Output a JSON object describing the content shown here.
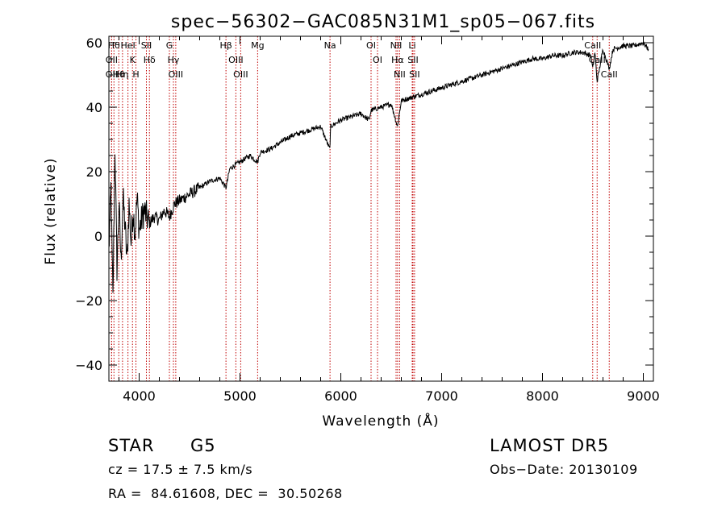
{
  "chart_data": {
    "type": "line",
    "title": "spec−56302−GAC085N31M1_sp05−067.fits",
    "xlabel": "Wavelength (Å)",
    "ylabel": "Flux (relative)",
    "xlim": [
      3700,
      9100
    ],
    "ylim": [
      -45,
      62
    ],
    "x_ticks": [
      4000,
      5000,
      6000,
      7000,
      8000,
      9000
    ],
    "y_ticks": [
      -40,
      -20,
      0,
      20,
      40,
      60
    ],
    "y_tick_labels": [
      "−40",
      "−20",
      "0",
      "20",
      "40",
      "60"
    ],
    "grid": false,
    "series": [
      {
        "x": [
          3700,
          3720,
          3740,
          3760,
          3780,
          3800,
          3820,
          3840,
          3860,
          3880,
          3900,
          3920,
          3940,
          3960,
          3980,
          4000,
          4050,
          4100,
          4150,
          4200,
          4250,
          4300,
          4350,
          4400,
          4500,
          4600,
          4700,
          4800,
          4861,
          4900,
          5000,
          5100,
          5175,
          5200,
          5300,
          5400,
          5500,
          5600,
          5700,
          5800,
          5890,
          5900,
          6000,
          6100,
          6200,
          6280,
          6300,
          6400,
          6500,
          6562,
          6600,
          6700,
          6800,
          6900,
          7000,
          7100,
          7200,
          7300,
          7400,
          7500,
          7600,
          7700,
          7800,
          7900,
          8000,
          8100,
          8200,
          8300,
          8400,
          8480,
          8498,
          8520,
          8542,
          8600,
          8662,
          8700,
          8800,
          8900,
          9000,
          9050
        ],
        "y": [
          -5,
          15,
          -20,
          28,
          -10,
          10,
          -8,
          12,
          3,
          -8,
          10,
          -2,
          8,
          1,
          12,
          2,
          8,
          4,
          6,
          5,
          8,
          6,
          10,
          11,
          13,
          15,
          17,
          18,
          15,
          21,
          23,
          25,
          23,
          26,
          27,
          29,
          31,
          32,
          33,
          34,
          27,
          34,
          36,
          37,
          38,
          36,
          39,
          40,
          41,
          34,
          42,
          43,
          44,
          45,
          46,
          47,
          48,
          49,
          50,
          51,
          52,
          53,
          54,
          55,
          55,
          56,
          56,
          57,
          57,
          56,
          52,
          57,
          48,
          58,
          52,
          58,
          59,
          59,
          60,
          58
        ]
      }
    ],
    "lines": [
      {
        "wl": 3750,
        "label": "Hθ"
      },
      {
        "wl": 3727,
        "label": "OII"
      },
      {
        "wl": 3727,
        "label": "OII"
      },
      {
        "wl": 3798,
        "label": "Hθ"
      },
      {
        "wl": 3835,
        "label": "Hη"
      },
      {
        "wl": 3889,
        "label": "HeI"
      },
      {
        "wl": 3934,
        "label": "K"
      },
      {
        "wl": 3968,
        "label": "H"
      },
      {
        "wl": 4072,
        "label": "SII"
      },
      {
        "wl": 4102,
        "label": "Hδ"
      },
      {
        "wl": 4300,
        "label": "G"
      },
      {
        "wl": 4340,
        "label": "Hγ"
      },
      {
        "wl": 4363,
        "label": "OIII"
      },
      {
        "wl": 4861,
        "label": "Hβ"
      },
      {
        "wl": 4959,
        "label": "OIII"
      },
      {
        "wl": 5007,
        "label": "OIII"
      },
      {
        "wl": 5175,
        "label": "Mg"
      },
      {
        "wl": 5893,
        "label": "Na"
      },
      {
        "wl": 6300,
        "label": "OI"
      },
      {
        "wl": 6364,
        "label": "OI"
      },
      {
        "wl": 6548,
        "label": "NII"
      },
      {
        "wl": 6563,
        "label": "Hα"
      },
      {
        "wl": 6583,
        "label": "NII"
      },
      {
        "wl": 6708,
        "label": "Li"
      },
      {
        "wl": 6716,
        "label": "SII"
      },
      {
        "wl": 6731,
        "label": "SII"
      },
      {
        "wl": 8498,
        "label": "CaII"
      },
      {
        "wl": 8542,
        "label": "CaII"
      },
      {
        "wl": 8662,
        "label": "CaII"
      }
    ],
    "line_color": "#c00000"
  },
  "info": {
    "class": "STAR",
    "subclass": "G5",
    "survey": "LAMOST DR5",
    "cz": "cz = 17.5 ± 7.5 km/s",
    "obs_date": "Obs−Date: 20130109",
    "coords": "RA =  84.61608, DEC =  30.50268"
  }
}
